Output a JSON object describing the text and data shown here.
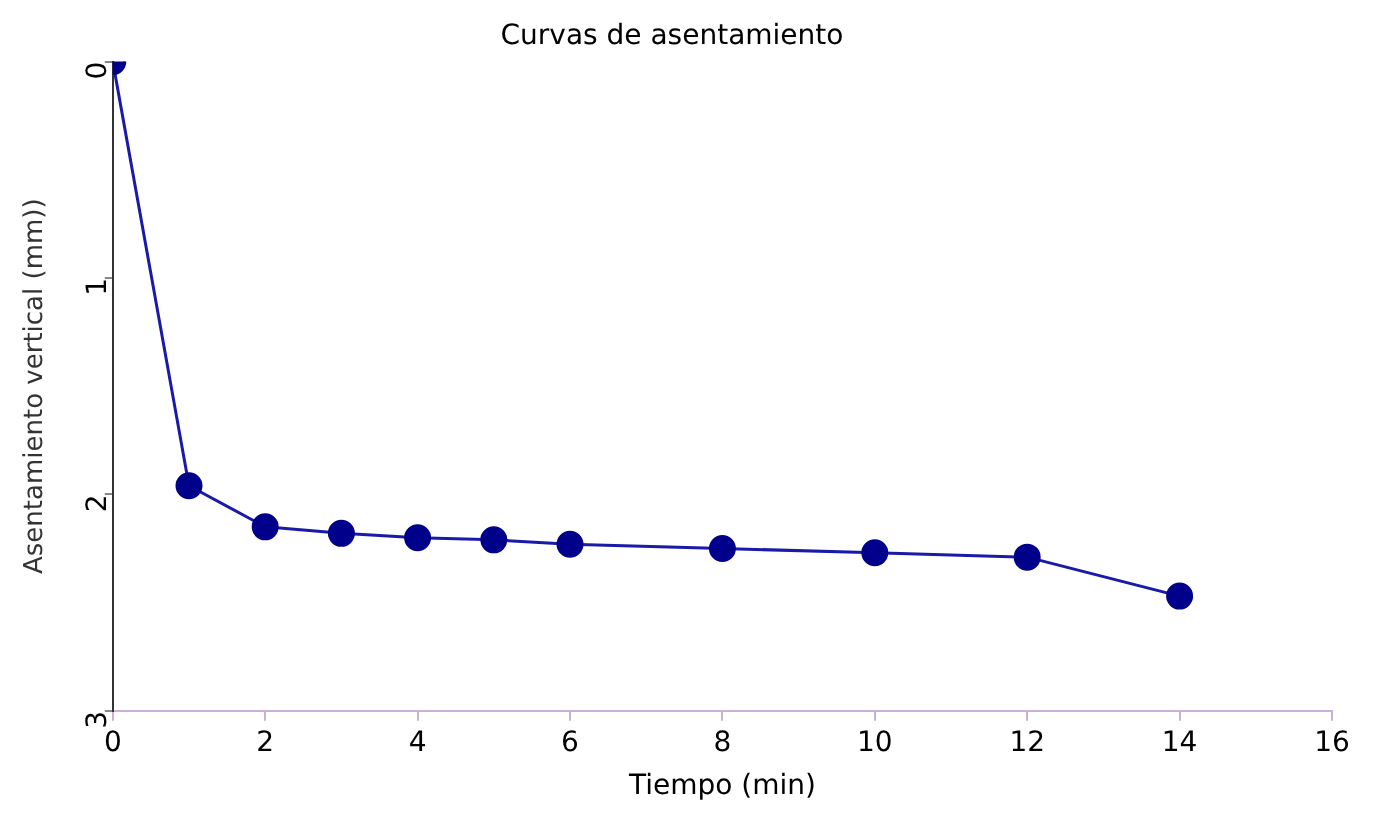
{
  "chart_data": {
    "type": "line",
    "title": "Curvas de asentamiento",
    "xlabel": "Tiempo (min)",
    "ylabel": "Asentamiento vertical (mm))",
    "x": [
      0,
      1,
      2,
      3,
      4,
      5,
      6,
      8,
      10,
      12,
      14
    ],
    "series": [
      {
        "color": "#1a1aa8",
        "values": [
          0,
          1.96,
          2.15,
          2.18,
          2.2,
          2.21,
          2.23,
          2.25,
          2.27,
          2.29,
          2.47
        ]
      }
    ],
    "xlim": [
      0,
      16
    ],
    "xticks": [
      0,
      2,
      4,
      6,
      8,
      10,
      12,
      14,
      16
    ],
    "ylim": [
      3,
      0
    ],
    "yticks": [
      0,
      1,
      2,
      3
    ],
    "grid": false,
    "legend": false,
    "marker": "circle",
    "line_style": "solid"
  }
}
